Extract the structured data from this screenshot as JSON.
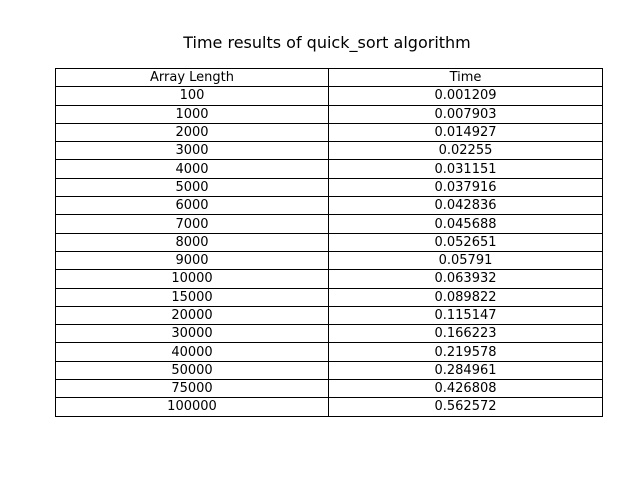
{
  "chart_data": {
    "type": "table",
    "title": "Time results of quick_sort algorithm",
    "columns": [
      "Array Length",
      "Time"
    ],
    "rows": [
      [
        "100",
        "0.001209"
      ],
      [
        "1000",
        "0.007903"
      ],
      [
        "2000",
        "0.014927"
      ],
      [
        "3000",
        "0.02255"
      ],
      [
        "4000",
        "0.031151"
      ],
      [
        "5000",
        "0.037916"
      ],
      [
        "6000",
        "0.042836"
      ],
      [
        "7000",
        "0.045688"
      ],
      [
        "8000",
        "0.052651"
      ],
      [
        "9000",
        "0.05791"
      ],
      [
        "10000",
        "0.063932"
      ],
      [
        "15000",
        "0.089822"
      ],
      [
        "20000",
        "0.115147"
      ],
      [
        "30000",
        "0.166223"
      ],
      [
        "40000",
        "0.219578"
      ],
      [
        "50000",
        "0.284961"
      ],
      [
        "75000",
        "0.426808"
      ],
      [
        "100000",
        "0.562572"
      ]
    ]
  }
}
